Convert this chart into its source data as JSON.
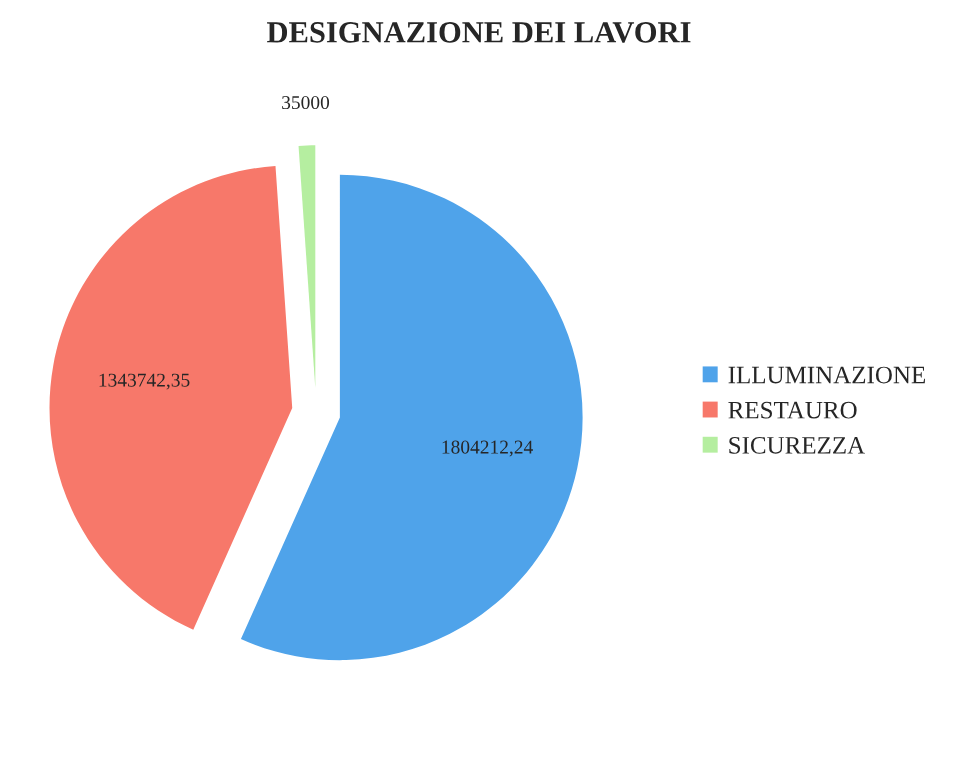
{
  "chart_data": {
    "type": "pie",
    "title": "DESIGNAZIONE DEI LAVORI",
    "categories": [
      "ILLUMINAZIONE",
      "RESTAURO",
      "SICUREZZA"
    ],
    "values": [
      1804212.24,
      1343742.35,
      35000
    ],
    "value_labels": [
      "1804212,24",
      "1343742,35",
      "35000"
    ],
    "colors": [
      "#4fa3ea",
      "#f7786a",
      "#b5eea0"
    ],
    "legend": "right"
  }
}
